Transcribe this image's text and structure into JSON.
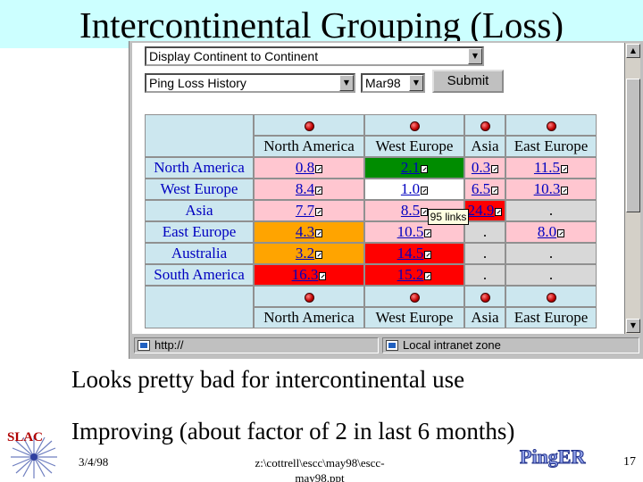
{
  "slide": {
    "title": "Intercontinental Grouping (Loss)",
    "bullets": [
      "Looks pretty bad for intercontinental use",
      "Improving (about factor of 2 in last 6 months)"
    ],
    "footer_date": "3/4/98",
    "footer_file": "z:\\cottrell\\escc\\may98\\escc-may98.ppt",
    "page_number": "17",
    "logos": {
      "left": "SLAC",
      "right": "PingER"
    }
  },
  "browser": {
    "form": {
      "display_select": "Display Continent to Continent",
      "metric_select": "Ping Loss History",
      "month_select": "Mar98",
      "submit_label": "Submit"
    },
    "table": {
      "column_headers": [
        "North America",
        "West Europe",
        "Asia",
        "East Europe"
      ],
      "rows": [
        {
          "label": "North America",
          "cells": [
            "0.8",
            "2.1",
            "0.3",
            "11.5"
          ]
        },
        {
          "label": "West Europe",
          "cells": [
            "8.4",
            "1.0",
            "6.5",
            "10.3"
          ]
        },
        {
          "label": "Asia",
          "cells": [
            "7.7",
            "8.5",
            "24.9",
            "."
          ]
        },
        {
          "label": "East Europe",
          "cells": [
            "4.3",
            "10.5",
            ".",
            "8.0"
          ]
        },
        {
          "label": "Australia",
          "cells": [
            "3.2",
            "14.5",
            ".",
            "."
          ]
        },
        {
          "label": "South America",
          "cells": [
            "16.3",
            "15.2",
            ".",
            "."
          ]
        }
      ],
      "tooltip": "95 links"
    },
    "status": {
      "url": "http://",
      "zone": "Local intranet zone"
    }
  },
  "colors": {
    "title_bg": "#ccffff",
    "cell_pink": "#ffc6d0",
    "cell_green": "#008c00",
    "cell_white": "#ffffff",
    "cell_orange": "#ffa400",
    "cell_red": "#ff0000",
    "cell_grey": "#d8d8d8",
    "header_bg": "#cce7ef",
    "link_blue": "#0000c0"
  },
  "icons": [
    "red-dot-icon",
    "external-link-icon",
    "page-icon",
    "intranet-zone-icon",
    "scroll-up-icon",
    "scroll-down-icon",
    "dropdown-arrow-icon"
  ]
}
